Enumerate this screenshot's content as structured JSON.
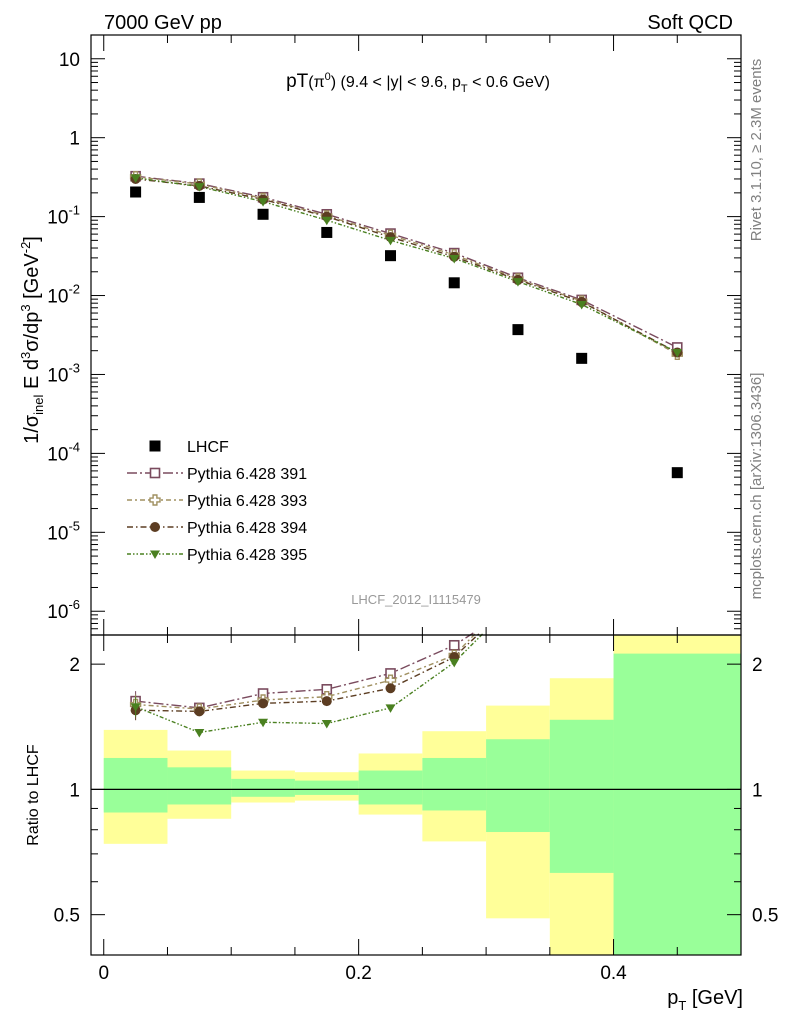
{
  "header": {
    "left": "7000 GeV pp",
    "right": "Soft QCD"
  },
  "side_labels": {
    "rivet": "Rivet 3.1.10, ≥ 2.3M events",
    "mcplots": "mcplots.cern.ch [arXiv:1306.3436]"
  },
  "analysis_id": "LHCF_2012_I1115479",
  "colors": {
    "data": "#000000",
    "p391": "#7a4b5e",
    "p393": "#a09060",
    "p394": "#5c3d22",
    "p395": "#4a8020",
    "band_yellow": "#ffff99",
    "band_green": "#99ff99"
  },
  "chart_data": [
    {
      "type": "scatter",
      "panel": "main",
      "title": "pT(π⁰) (9.4 < |y| < 9.6, p_T < 0.6 GeV)",
      "ylabel": "1/σ_inel E d³σ/dp³ [GeV⁻²]",
      "yscale": "log",
      "ylim": [
        5e-07,
        20
      ],
      "xlim": [
        -0.01,
        0.5
      ],
      "ytick_labels": [
        "10",
        "1",
        "10^-1",
        "10^-2",
        "10^-3",
        "10^-4",
        "10^-5",
        "10^-6"
      ],
      "grid": false,
      "legend_position": "bottom-left",
      "x": [
        0.025,
        0.075,
        0.125,
        0.175,
        0.225,
        0.275,
        0.325,
        0.375,
        0.45
      ],
      "series": [
        {
          "name": "LHCF",
          "key": "data",
          "marker": "square-filled",
          "values": [
            0.205,
            0.175,
            0.107,
            0.063,
            0.032,
            0.0145,
            0.0037,
            0.0016,
            5.7e-05
          ]
        },
        {
          "name": "Pythia 6.428 391",
          "key": "p391",
          "marker": "square-open",
          "values": [
            0.325,
            0.262,
            0.176,
            0.107,
            0.061,
            0.0345,
            0.0168,
            0.0088,
            0.0022
          ]
        },
        {
          "name": "Pythia 6.428 393",
          "key": "p393",
          "marker": "cross-open",
          "values": [
            0.32,
            0.258,
            0.17,
            0.102,
            0.058,
            0.0328,
            0.0162,
            0.0085,
            0.0018
          ]
        },
        {
          "name": "Pythia 6.428 394",
          "key": "p394",
          "marker": "circle-filled",
          "values": [
            0.3,
            0.245,
            0.165,
            0.1,
            0.055,
            0.031,
            0.0158,
            0.0083,
            0.0019
          ]
        },
        {
          "name": "Pythia 6.428 395",
          "key": "p395",
          "marker": "triangle-down-filled",
          "values": [
            0.31,
            0.24,
            0.155,
            0.09,
            0.05,
            0.0295,
            0.015,
            0.0077,
            0.0019
          ]
        }
      ]
    },
    {
      "type": "line",
      "panel": "ratio",
      "ylabel": "Ratio to LHCF",
      "xlabel": "p_T [GeV]",
      "yscale": "log",
      "ylim": [
        0.4,
        2.35
      ],
      "xlim": [
        -0.01,
        0.5
      ],
      "xtick_labels": [
        "0",
        "0.2",
        "0.4"
      ],
      "ytick_labels": [
        "0.5",
        "1",
        "2"
      ],
      "bin_edges": [
        0,
        0.05,
        0.1,
        0.15,
        0.2,
        0.25,
        0.3,
        0.35,
        0.4,
        0.5
      ],
      "uncertainty_bands": {
        "yellow": [
          [
            0.74,
            1.39
          ],
          [
            0.85,
            1.24
          ],
          [
            0.93,
            1.11
          ],
          [
            0.94,
            1.1
          ],
          [
            0.87,
            1.22
          ],
          [
            0.75,
            1.38
          ],
          [
            0.49,
            1.59
          ],
          [
            0.39,
            1.85
          ],
          [
            0.39,
            2.35
          ]
        ],
        "green": [
          [
            0.88,
            1.19
          ],
          [
            0.92,
            1.13
          ],
          [
            0.96,
            1.06
          ],
          [
            0.97,
            1.05
          ],
          [
            0.92,
            1.11
          ],
          [
            0.89,
            1.19
          ],
          [
            0.79,
            1.32
          ],
          [
            0.63,
            1.47
          ],
          [
            0.39,
            2.12
          ]
        ]
      },
      "x": [
        0.025,
        0.075,
        0.125,
        0.175,
        0.225,
        0.275
      ],
      "series": [
        {
          "name": "Pythia 6.428 391",
          "key": "p391",
          "values": [
            1.63,
            1.57,
            1.7,
            1.74,
            1.9,
            2.22
          ],
          "continues_above_to_x": 0.29
        },
        {
          "name": "Pythia 6.428 393",
          "key": "p393",
          "values": [
            1.6,
            1.56,
            1.64,
            1.67,
            1.83,
            2.1
          ],
          "continues_above_to_x": 0.292
        },
        {
          "name": "Pythia 6.428 394",
          "key": "p394",
          "values": [
            1.55,
            1.54,
            1.61,
            1.63,
            1.75,
            2.08
          ],
          "continues_above_to_x": 0.295
        },
        {
          "name": "Pythia 6.428 395",
          "key": "p395",
          "values": [
            1.58,
            1.37,
            1.45,
            1.44,
            1.57,
            2.02
          ],
          "continues_above_to_x": 0.298
        }
      ]
    }
  ]
}
